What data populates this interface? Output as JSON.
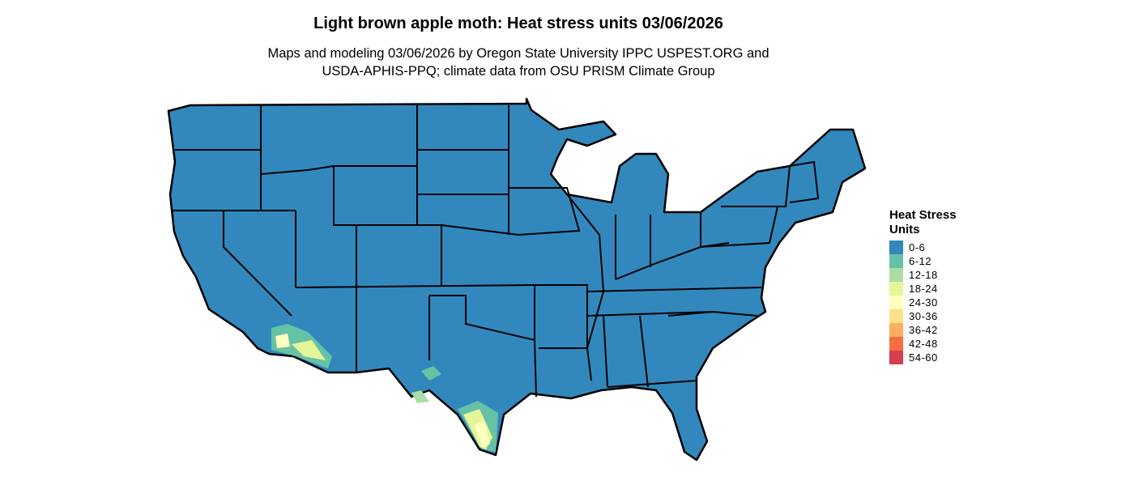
{
  "title": "Light brown apple moth: Heat stress units 03/06/2026",
  "subtitle_line1": "Maps and modeling 03/06/2026 by Oregon State University IPPC USPEST.ORG and",
  "subtitle_line2": "USDA-APHIS-PPQ; climate data from OSU PRISM Climate Group",
  "legend": {
    "title_line1": "Heat Stress",
    "title_line2": "Units",
    "items": [
      {
        "label": "0-6",
        "color": "#3288bd"
      },
      {
        "label": "6-12",
        "color": "#66c2a5"
      },
      {
        "label": "12-18",
        "color": "#abdda4"
      },
      {
        "label": "18-24",
        "color": "#e6f598"
      },
      {
        "label": "24-30",
        "color": "#ffffbf"
      },
      {
        "label": "30-36",
        "color": "#fee08b"
      },
      {
        "label": "36-42",
        "color": "#fdae61"
      },
      {
        "label": "42-48",
        "color": "#f46d43"
      },
      {
        "label": "54-60",
        "color": "#d53e4f"
      }
    ]
  },
  "map": {
    "region": "Contiguous United States",
    "base_class": "0-6",
    "hotspots": [
      "southern Arizona / southeastern California",
      "south Texas",
      "west Texas"
    ]
  }
}
